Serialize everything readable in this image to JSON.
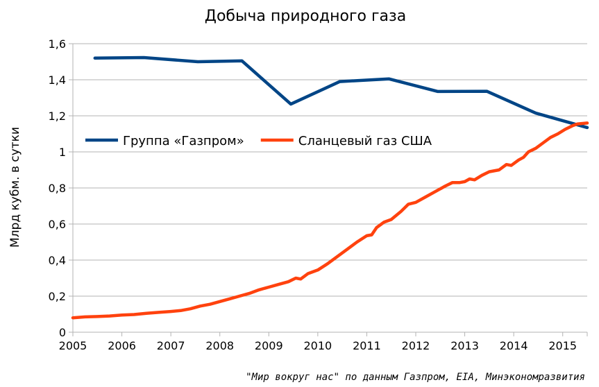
{
  "chart_data": {
    "type": "line",
    "title": "Добыча природного газа",
    "xlabel": "",
    "ylabel": "Млрд кубм. в сутки",
    "xlim": [
      2005,
      2015.5
    ],
    "ylim": [
      0,
      1.6
    ],
    "x_ticks": [
      "2005",
      "2006",
      "2007",
      "2008",
      "2009",
      "2010",
      "2011",
      "2012",
      "2013",
      "2014",
      "2015"
    ],
    "y_ticks": [
      "0",
      "0,2",
      "0,4",
      "0,6",
      "0,8",
      "1",
      "1,2",
      "1,4",
      "1,6"
    ],
    "grid": "horizontal",
    "legend_position": "center-left",
    "series": [
      {
        "name": "Группа «Газпром»",
        "color": "#004586",
        "points": [
          [
            2005.45,
            1.52
          ],
          [
            2006.45,
            1.523
          ],
          [
            2007.55,
            1.5
          ],
          [
            2008.45,
            1.505
          ],
          [
            2009.45,
            1.265
          ],
          [
            2010.45,
            1.39
          ],
          [
            2011.45,
            1.405
          ],
          [
            2012.45,
            1.335
          ],
          [
            2013.45,
            1.336
          ],
          [
            2014.45,
            1.215
          ],
          [
            2015.5,
            1.135
          ]
        ]
      },
      {
        "name": "Сланцевый газ США",
        "color": "#ff420e",
        "points": [
          [
            2005.0,
            0.08
          ],
          [
            2005.25,
            0.085
          ],
          [
            2005.5,
            0.087
          ],
          [
            2005.75,
            0.09
          ],
          [
            2006.0,
            0.095
          ],
          [
            2006.25,
            0.098
          ],
          [
            2006.5,
            0.105
          ],
          [
            2006.75,
            0.11
          ],
          [
            2007.0,
            0.115
          ],
          [
            2007.2,
            0.12
          ],
          [
            2007.4,
            0.13
          ],
          [
            2007.6,
            0.145
          ],
          [
            2007.8,
            0.155
          ],
          [
            2008.0,
            0.17
          ],
          [
            2008.2,
            0.185
          ],
          [
            2008.4,
            0.2
          ],
          [
            2008.6,
            0.215
          ],
          [
            2008.8,
            0.235
          ],
          [
            2009.0,
            0.25
          ],
          [
            2009.2,
            0.265
          ],
          [
            2009.4,
            0.28
          ],
          [
            2009.55,
            0.3
          ],
          [
            2009.65,
            0.295
          ],
          [
            2009.8,
            0.325
          ],
          [
            2010.0,
            0.345
          ],
          [
            2010.2,
            0.38
          ],
          [
            2010.4,
            0.42
          ],
          [
            2010.6,
            0.46
          ],
          [
            2010.8,
            0.5
          ],
          [
            2011.0,
            0.535
          ],
          [
            2011.1,
            0.54
          ],
          [
            2011.2,
            0.58
          ],
          [
            2011.35,
            0.61
          ],
          [
            2011.5,
            0.625
          ],
          [
            2011.7,
            0.67
          ],
          [
            2011.85,
            0.71
          ],
          [
            2012.0,
            0.72
          ],
          [
            2012.2,
            0.75
          ],
          [
            2012.4,
            0.78
          ],
          [
            2012.6,
            0.81
          ],
          [
            2012.75,
            0.83
          ],
          [
            2012.9,
            0.83
          ],
          [
            2013.0,
            0.835
          ],
          [
            2013.1,
            0.85
          ],
          [
            2013.2,
            0.845
          ],
          [
            2013.35,
            0.87
          ],
          [
            2013.5,
            0.89
          ],
          [
            2013.7,
            0.9
          ],
          [
            2013.85,
            0.93
          ],
          [
            2013.95,
            0.925
          ],
          [
            2014.1,
            0.955
          ],
          [
            2014.2,
            0.97
          ],
          [
            2014.3,
            1.0
          ],
          [
            2014.45,
            1.02
          ],
          [
            2014.6,
            1.05
          ],
          [
            2014.75,
            1.08
          ],
          [
            2014.9,
            1.1
          ],
          [
            2015.05,
            1.125
          ],
          [
            2015.2,
            1.145
          ],
          [
            2015.3,
            1.155
          ],
          [
            2015.5,
            1.16
          ]
        ]
      }
    ]
  },
  "source_note": "\"Мир вокруг нас\" по данным Газпром, EIA, Минэкономразвития"
}
